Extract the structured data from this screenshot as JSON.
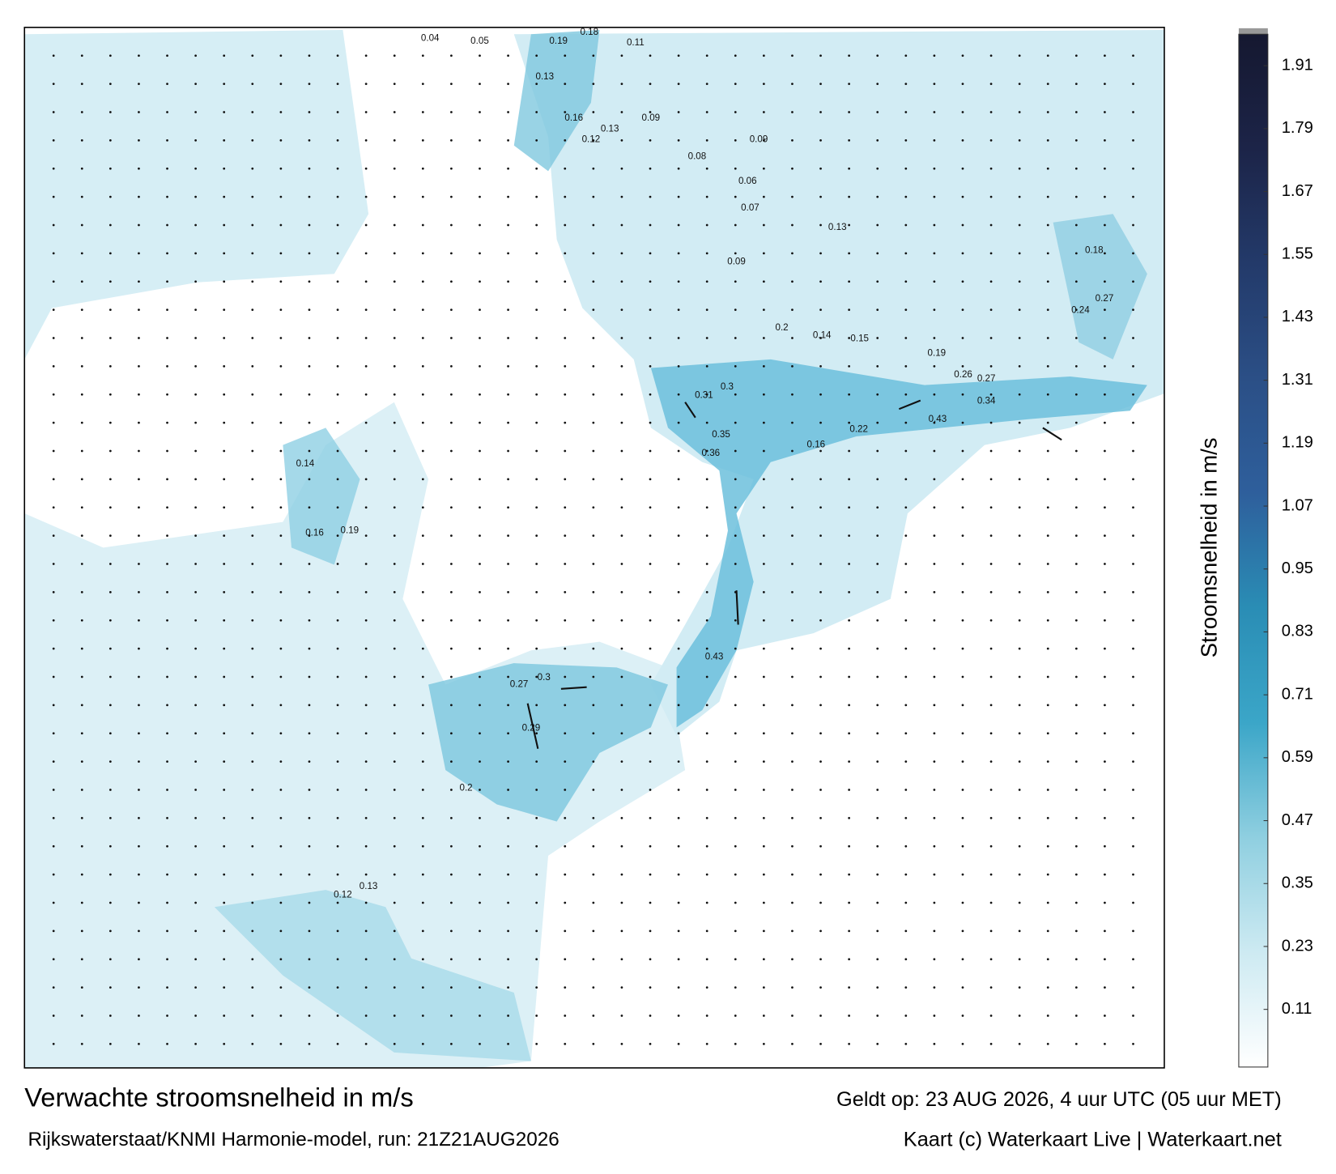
{
  "title": "Verwachte stroomsnelheid in m/s",
  "subtitle": "Rijkswaterstaat/KNMI Harmonie-model, run: 21Z21AUG2026",
  "valid": "Geldt op: 23 AUG 2026, 4 uur UTC (05 uur MET)",
  "credit": "Kaart (c) Waterkaart Live | Waterkaart.net",
  "colorbar": {
    "label": "Stroomsnelheid in m/s",
    "lim": [
      0,
      1.97
    ],
    "ticks": [
      0.11,
      0.23,
      0.35,
      0.47,
      0.59,
      0.71,
      0.83,
      0.95,
      1.07,
      1.19,
      1.31,
      1.43,
      1.55,
      1.67,
      1.79,
      1.91
    ],
    "colors": [
      "#ffffff",
      "#cdeaf2",
      "#8fcfe0",
      "#3ba6c8",
      "#2a8db5",
      "#2e5f9c",
      "#2b4f86",
      "#233a6a",
      "#1c2448",
      "#151830"
    ]
  },
  "map_labels": [
    0.19,
    0.18,
    0.11,
    0.05,
    0.04,
    0.13,
    0.16,
    0.12,
    0.13,
    0.09,
    0.08,
    0.09,
    0.06,
    0.07,
    0.09,
    0.13,
    0.2,
    0.14,
    0.15,
    0.19,
    0.26,
    0.27,
    0.3,
    0.31,
    0.34,
    0.43,
    0.35,
    0.36,
    0.22,
    0.16,
    0.3,
    0.27,
    0.29,
    0.43,
    0.2,
    0.12,
    0.13,
    0.14,
    0.16,
    0.19,
    0.18,
    0.24,
    0.27
  ]
}
